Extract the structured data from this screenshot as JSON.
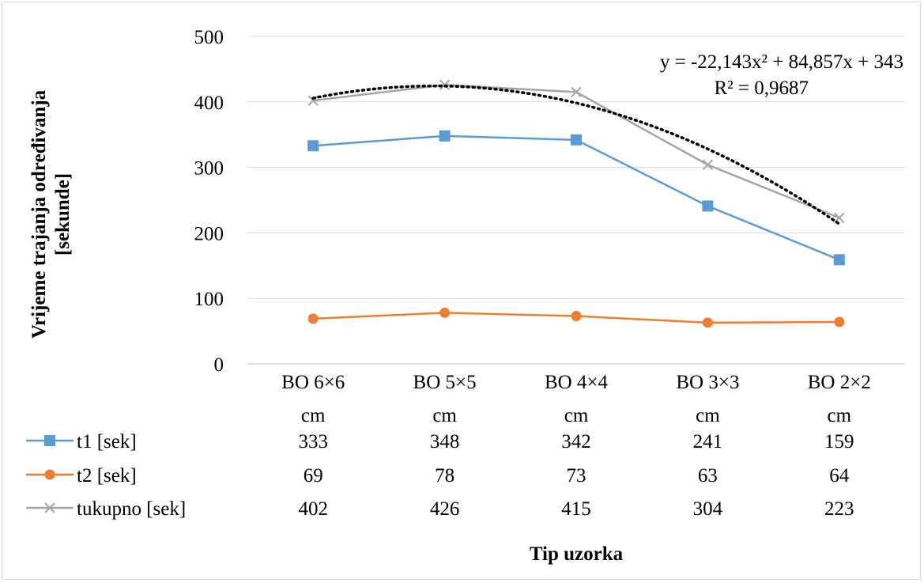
{
  "chart_data": {
    "type": "line",
    "ylabel_lines": [
      "Vrijeme trajanja određivanja",
      "[sekunde]"
    ],
    "xlabel": "Tip uzorka",
    "ylim": [
      0,
      500
    ],
    "yticks": [
      0,
      100,
      200,
      300,
      400,
      500
    ],
    "grid": true,
    "categories": [
      {
        "line1": "BO 6×6",
        "line2": "cm"
      },
      {
        "line1": "BO 5×5",
        "line2": "cm"
      },
      {
        "line1": "BO 4×4",
        "line2": "cm"
      },
      {
        "line1": "BO 3×3",
        "line2": "cm"
      },
      {
        "line1": "BO 2×2",
        "line2": "cm"
      }
    ],
    "series": [
      {
        "name": "t1 [sek]",
        "values": [
          333,
          348,
          342,
          241,
          159
        ],
        "color": "#5b9bd5",
        "marker": "square"
      },
      {
        "name": "t2 [sek]",
        "values": [
          69,
          78,
          73,
          63,
          64
        ],
        "color": "#ed7d31",
        "marker": "circle"
      },
      {
        "name": "tukupno [sek]",
        "values": [
          402,
          426,
          415,
          304,
          223
        ],
        "color": "#a5a5a5",
        "marker": "x"
      }
    ],
    "trendline": {
      "type": "polynomial",
      "order": 2,
      "color": "#000000",
      "style": "dotted",
      "equation": "y = -22,143x² + 84,857x + 343",
      "r_squared": "R² = 0,9687"
    },
    "legend_placement": "data-table"
  }
}
